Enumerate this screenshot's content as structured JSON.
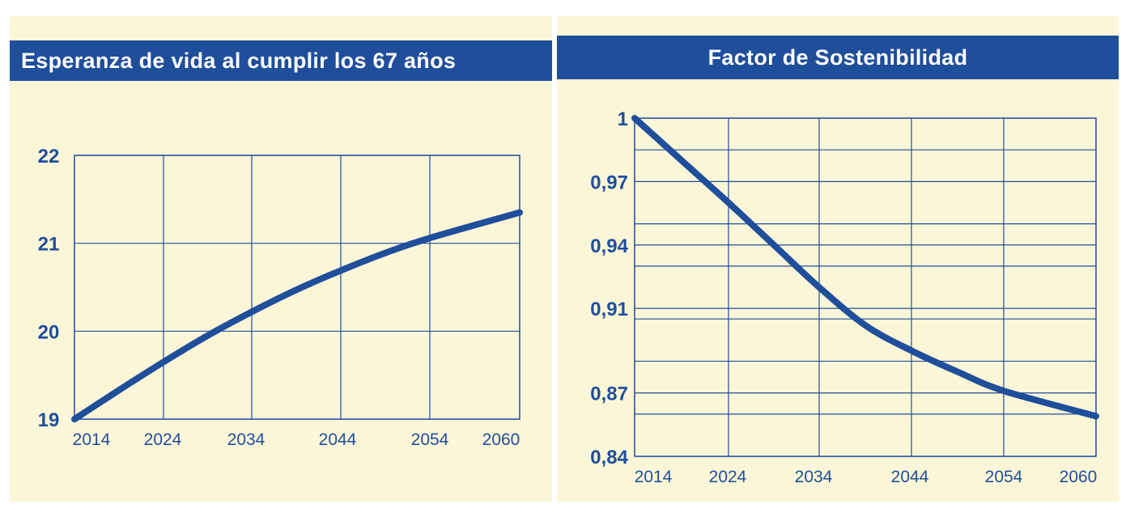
{
  "colors": {
    "panel_bg": "#fcf6d8",
    "header_bg": "#1f4e9b",
    "line": "#1f4e9b",
    "grid": "#1f4e9b",
    "text": "#1f4e9b"
  },
  "chart_data": [
    {
      "type": "line",
      "title": "Esperanza de vida al cumplir los 67 años",
      "xlabel": "",
      "ylabel": "",
      "x_tick_labels": [
        "2014",
        "2024",
        "2034",
        "2044",
        "2054",
        "2060"
      ],
      "y_tick_labels": [
        "19",
        "20",
        "21",
        "22"
      ],
      "ylim": [
        19,
        22
      ],
      "grid": true,
      "legend": "none",
      "series": [
        {
          "x": [
            "2014",
            "2019",
            "2024",
            "2029",
            "2034",
            "2039",
            "2044",
            "2049",
            "2054",
            "2060"
          ],
          "y": [
            19.0,
            19.33,
            19.65,
            19.95,
            20.22,
            20.47,
            20.69,
            20.89,
            21.06,
            21.35
          ]
        }
      ]
    },
    {
      "type": "line",
      "title": "Factor de Sostenibilidad",
      "xlabel": "",
      "ylabel": "",
      "x_tick_labels": [
        "2014",
        "2024",
        "2034",
        "2044",
        "2054",
        "2060"
      ],
      "y_tick_labels": [
        "0,84",
        "0,87",
        "0,91",
        "0,94",
        "0,97",
        "1"
      ],
      "ylim": [
        0.84,
        1.0
      ],
      "grid": true,
      "legend": "none",
      "series": [
        {
          "x": [
            "2014",
            "2019",
            "2024",
            "2029",
            "2034",
            "2039",
            "2044",
            "2049",
            "2054",
            "2060"
          ],
          "y": [
            1.0,
            0.98,
            0.96,
            0.94,
            0.92,
            0.902,
            0.89,
            0.88,
            0.871,
            0.859
          ]
        }
      ]
    }
  ]
}
